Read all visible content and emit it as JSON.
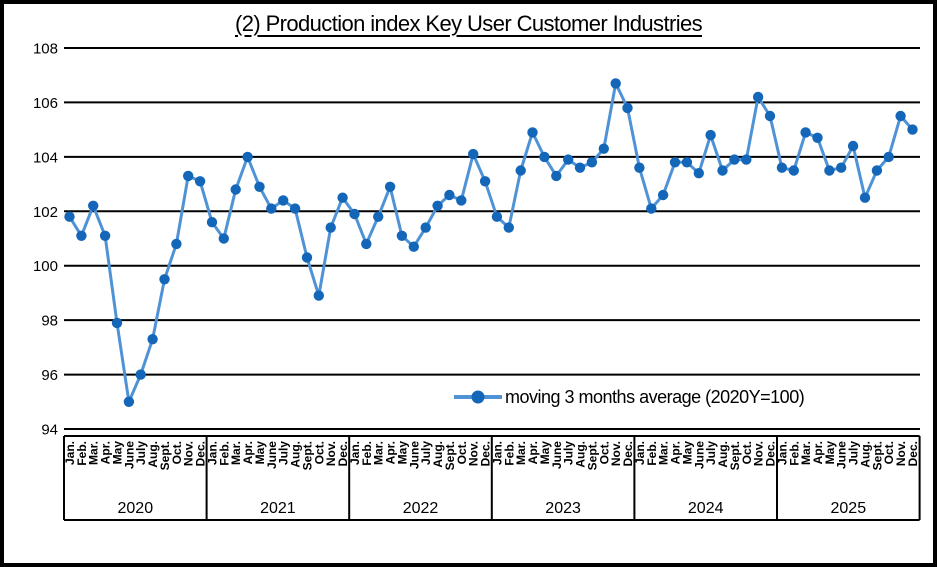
{
  "title": "(2) Production index Key User Customer Industries",
  "legend": {
    "label": "moving 3 months average  (2020Y=100)"
  },
  "chart_data": {
    "type": "line",
    "title": "(2) Production index Key User Customer Industries",
    "xlabel": "",
    "ylabel": "",
    "ylim": [
      94,
      108
    ],
    "grid": true,
    "legend_position": "inside-bottom-center-right",
    "y_axis": {
      "ticks": [
        108,
        106,
        104,
        102,
        100,
        98,
        96,
        94
      ]
    },
    "x_axis": {
      "month_labels": [
        "Jan.",
        "Feb.",
        "Mar.",
        "Apr.",
        "May",
        "June",
        "July",
        "Aug.",
        "Sept.",
        "Oct.",
        "Nov.",
        "Dec."
      ],
      "year_labels": [
        "2020",
        "2021",
        "2022",
        "2023",
        "2024",
        "2025"
      ]
    },
    "series": [
      {
        "name": "moving 3 months average  (2020Y=100)",
        "line_color": "#4f93d6",
        "marker_color": "#1467b8",
        "values": [
          101.8,
          101.1,
          102.2,
          101.1,
          97.9,
          95.0,
          96.0,
          97.3,
          99.5,
          100.8,
          103.3,
          103.1,
          101.6,
          101.0,
          102.8,
          104.0,
          102.9,
          102.1,
          102.4,
          102.1,
          100.3,
          98.9,
          101.4,
          102.5,
          101.9,
          100.8,
          101.8,
          102.9,
          101.1,
          100.7,
          101.4,
          102.2,
          102.6,
          102.4,
          104.1,
          103.1,
          101.8,
          101.4,
          103.5,
          104.9,
          104.0,
          103.3,
          103.9,
          103.6,
          103.8,
          104.3,
          106.7,
          105.8,
          103.6,
          102.1,
          102.6,
          103.8,
          103.8,
          103.4,
          104.8,
          103.5,
          103.9,
          103.9,
          106.2,
          105.5,
          103.6,
          103.5,
          104.9,
          104.7,
          103.5,
          103.6,
          104.4,
          102.5,
          103.5,
          104.0,
          105.5,
          105.0
        ]
      }
    ],
    "colors": {
      "gridline": "#000000",
      "axis_box": "#000000",
      "text": "#000000"
    }
  }
}
